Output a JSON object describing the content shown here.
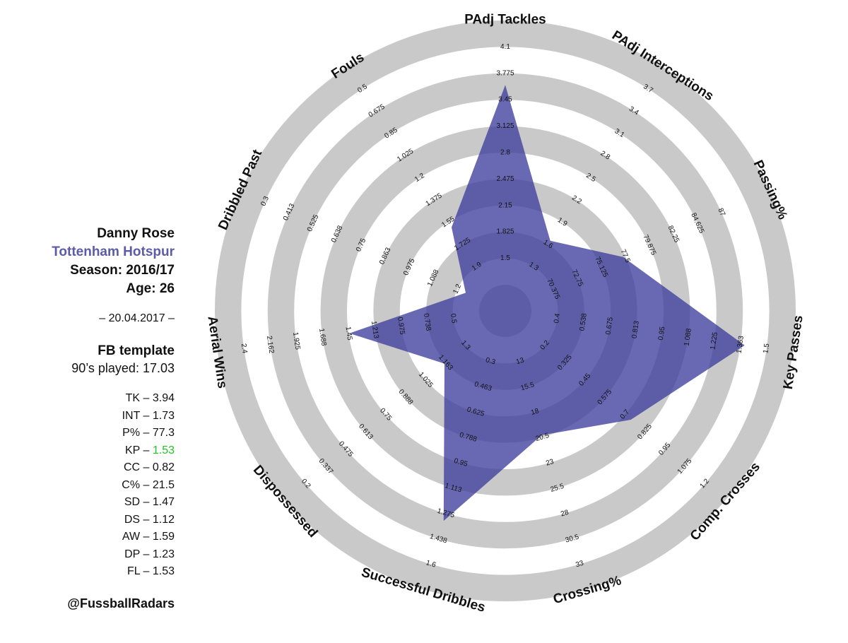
{
  "sidebar": {
    "player": "Danny Rose",
    "team": "Tottenham Hotspur",
    "season": "Season: 2016/17",
    "age": "Age: 26",
    "date": "– 20.04.2017 –",
    "template": "FB template",
    "played": "90’s played: 17.03",
    "stats": [
      {
        "abbr": "TK",
        "value": "3.94",
        "highlight": false
      },
      {
        "abbr": "INT",
        "value": "1.73",
        "highlight": false
      },
      {
        "abbr": "P%",
        "value": "77.3",
        "highlight": false
      },
      {
        "abbr": "KP",
        "value": "1.53",
        "highlight": true
      },
      {
        "abbr": "CC",
        "value": "0.82",
        "highlight": false
      },
      {
        "abbr": "C%",
        "value": "21.5",
        "highlight": false
      },
      {
        "abbr": "SD",
        "value": "1.47",
        "highlight": false
      },
      {
        "abbr": "DS",
        "value": "1.12",
        "highlight": false
      },
      {
        "abbr": "AW",
        "value": "1.59",
        "highlight": false
      },
      {
        "abbr": "DP",
        "value": "1.23",
        "highlight": false
      },
      {
        "abbr": "FL",
        "value": "1.53",
        "highlight": false
      }
    ],
    "separator": " – ",
    "handle": "@FussballRadars"
  },
  "colors": {
    "ring_gray": "#c9c9c9",
    "fill": "#3f3f9d",
    "team": "#5b5ba8",
    "highlight": "#22c422"
  },
  "chart_data": {
    "type": "radar",
    "series": [
      {
        "values": [
          3.94,
          1.73,
          77.3,
          1.53,
          0.82,
          21.5,
          1.47,
          1.12,
          1.59,
          1.23,
          1.53
        ]
      }
    ],
    "axes": [
      {
        "label": "PAdj Tackles",
        "ticks": [
          "1.5",
          "1.825",
          "2.15",
          "2.475",
          "2.8",
          "3.125",
          "3.45",
          "3.775",
          "4.1"
        ],
        "min": 1.2,
        "max": 4.1,
        "inverted": false
      },
      {
        "label": "PAdj Interceptions",
        "ticks": [
          "1.3",
          "1.6",
          "1.9",
          "2.2",
          "2.5",
          "2.8",
          "3.1",
          "3.4",
          "3.7"
        ],
        "min": 1.0,
        "max": 3.7,
        "inverted": false
      },
      {
        "label": "Passing%",
        "ticks": [
          "70.375",
          "72.75",
          "75.125",
          "77.5",
          "79.875",
          "82.25",
          "84.625",
          "87"
        ],
        "min": 68,
        "max": 87,
        "inverted": false
      },
      {
        "label": "Key Passes",
        "ticks": [
          "0.4",
          "0.538",
          "0.675",
          "0.813",
          "0.95",
          "1.088",
          "1.225",
          "1.363",
          "1.5"
        ],
        "min": 0.263,
        "max": 1.5,
        "inverted": false
      },
      {
        "label": "Comp. Crosses",
        "ticks": [
          "0.2",
          "0.325",
          "0.45",
          "0.575",
          "0.7",
          "0.825",
          "0.95",
          "1.075",
          "1.2"
        ],
        "min": 0.075,
        "max": 1.2,
        "inverted": false
      },
      {
        "label": "Crossing%",
        "ticks": [
          "13",
          "15.5",
          "18",
          "20.5",
          "23",
          "25.5",
          "28",
          "30.5",
          "33"
        ],
        "min": 10.5,
        "max": 33,
        "inverted": false
      },
      {
        "label": "Successful Dribbles",
        "ticks": [
          "0.3",
          "0.463",
          "0.625",
          "0.788",
          "0.95",
          "1.113",
          "1.275",
          "1.438",
          "1.6"
        ],
        "min": 0.138,
        "max": 1.6,
        "inverted": false
      },
      {
        "label": "Dispossessed",
        "ticks": [
          "1.3",
          "1.163",
          "1.025",
          "0.888",
          "0.75",
          "0.613",
          "0.475",
          "0.337",
          "0.2"
        ],
        "min": 1.438,
        "max": 0.2,
        "inverted": true
      },
      {
        "label": "Aerial Wins",
        "ticks": [
          "0.5",
          "0.738",
          "0.975",
          "1.213",
          "1.45",
          "1.688",
          "1.925",
          "2.162",
          "2.4"
        ],
        "min": 0.263,
        "max": 2.4,
        "inverted": false
      },
      {
        "label": "Dribbled Past",
        "ticks": [
          "1.2",
          "1.088",
          "0.975",
          "0.863",
          "0.75",
          "0.638",
          "0.525",
          "0.413",
          "0.3"
        ],
        "min": 1.313,
        "max": 0.3,
        "inverted": true
      },
      {
        "label": "Fouls",
        "ticks": [
          "1.9",
          "1.725",
          "1.55",
          "1.375",
          "1.2",
          "1.025",
          "0.85",
          "0.675",
          "0.5"
        ],
        "min": 2.075,
        "max": 0.5,
        "inverted": true
      }
    ]
  }
}
